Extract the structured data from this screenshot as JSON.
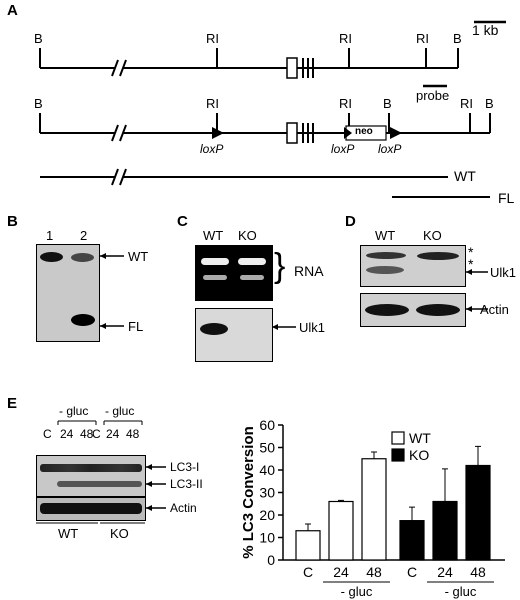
{
  "panels": {
    "A": {
      "label": "A",
      "scale_bar": "1 kb",
      "top_sites": [
        "B",
        "RI",
        "RI",
        "RI",
        "B"
      ],
      "probe": "probe",
      "bottom_sites": [
        "B",
        "RI",
        "RI",
        "B",
        "RI",
        "B"
      ],
      "loxp": [
        "loxP",
        "loxP",
        "loxP"
      ],
      "neo": "neo",
      "wt": "WT",
      "fl": "FL"
    },
    "B": {
      "label": "B",
      "lanes": [
        "1",
        "2"
      ],
      "wt": "WT",
      "fl": "FL"
    },
    "C": {
      "label": "C",
      "lanes": [
        "WT",
        "KO"
      ],
      "rna": "RNA",
      "ulk1": "Ulk1"
    },
    "D": {
      "label": "D",
      "lanes": [
        "WT",
        "KO"
      ],
      "asterisk": "*",
      "ulk1": "Ulk1",
      "actin": "Actin"
    },
    "E": {
      "label": "E",
      "blot_lanes": [
        "C",
        "24",
        "48",
        "C",
        "24",
        "48"
      ],
      "gluc": "- gluc",
      "lc3_i": "LC3-I",
      "lc3_ii": "LC3-II",
      "actin": "Actin",
      "groups": [
        "WT",
        "KO"
      ]
    }
  },
  "chart_data": {
    "type": "bar",
    "ylabel": "% LC3 Conversion",
    "ylim": [
      0,
      60
    ],
    "yticks": [
      0,
      10,
      20,
      30,
      40,
      50,
      60
    ],
    "categories": [
      "C",
      "24",
      "48"
    ],
    "group_label": "- gluc",
    "legend_position": "top-right",
    "series": [
      {
        "name": "WT",
        "color": "#ffffff",
        "values": [
          13,
          26,
          45
        ],
        "errors": [
          3,
          0.5,
          3
        ]
      },
      {
        "name": "KO",
        "color": "#000000",
        "values": [
          17.5,
          26,
          42
        ],
        "errors": [
          6,
          14.5,
          8.5
        ]
      }
    ]
  }
}
